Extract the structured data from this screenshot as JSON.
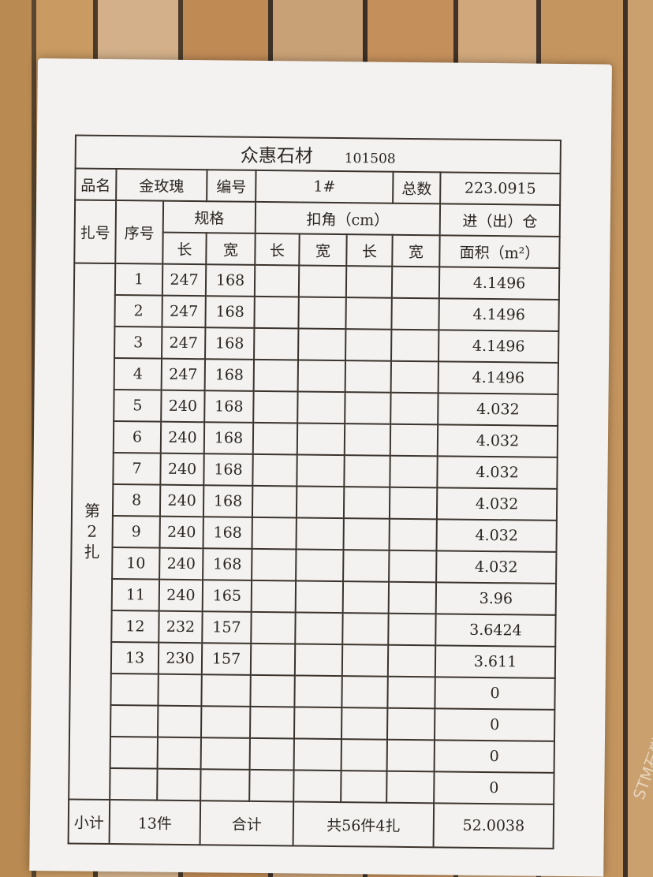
{
  "header": {
    "company": "众惠石材",
    "code": "101508"
  },
  "info": {
    "name_label": "品名",
    "name": "金玫瑰",
    "number_label": "编号",
    "number": "1#",
    "total_label": "总数",
    "total": "223.0915"
  },
  "columns": {
    "bundle": "扎号",
    "seq": "序号",
    "spec": "规格",
    "deduct": "扣角（cm）",
    "length": "长",
    "width": "宽",
    "area_line1": "进（出）仓",
    "area_line2": "面积（m²）"
  },
  "bundle_label": [
    "第",
    "2",
    "扎"
  ],
  "rows": [
    {
      "seq": "1",
      "l": "247",
      "w": "168",
      "area": "4.1496"
    },
    {
      "seq": "2",
      "l": "247",
      "w": "168",
      "area": "4.1496"
    },
    {
      "seq": "3",
      "l": "247",
      "w": "168",
      "area": "4.1496"
    },
    {
      "seq": "4",
      "l": "247",
      "w": "168",
      "area": "4.1496"
    },
    {
      "seq": "5",
      "l": "240",
      "w": "168",
      "area": "4.032"
    },
    {
      "seq": "6",
      "l": "240",
      "w": "168",
      "area": "4.032"
    },
    {
      "seq": "7",
      "l": "240",
      "w": "168",
      "area": "4.032"
    },
    {
      "seq": "8",
      "l": "240",
      "w": "168",
      "area": "4.032"
    },
    {
      "seq": "9",
      "l": "240",
      "w": "168",
      "area": "4.032"
    },
    {
      "seq": "10",
      "l": "240",
      "w": "168",
      "area": "4.032"
    },
    {
      "seq": "11",
      "l": "240",
      "w": "165",
      "area": "3.96"
    },
    {
      "seq": "12",
      "l": "232",
      "w": "157",
      "area": "3.6424"
    },
    {
      "seq": "13",
      "l": "230",
      "w": "157",
      "area": "3.611"
    },
    {
      "seq": "",
      "l": "",
      "w": "",
      "area": "0"
    },
    {
      "seq": "",
      "l": "",
      "w": "",
      "area": "0"
    },
    {
      "seq": "",
      "l": "",
      "w": "",
      "area": "0"
    },
    {
      "seq": "",
      "l": "",
      "w": "",
      "area": "0"
    }
  ],
  "footer": {
    "subtotal_label": "小计",
    "subtotal": "13件",
    "total_label": "合计",
    "total_count": "共56件4扎",
    "total_area": "52.0038"
  },
  "watermark": "STM石猫"
}
